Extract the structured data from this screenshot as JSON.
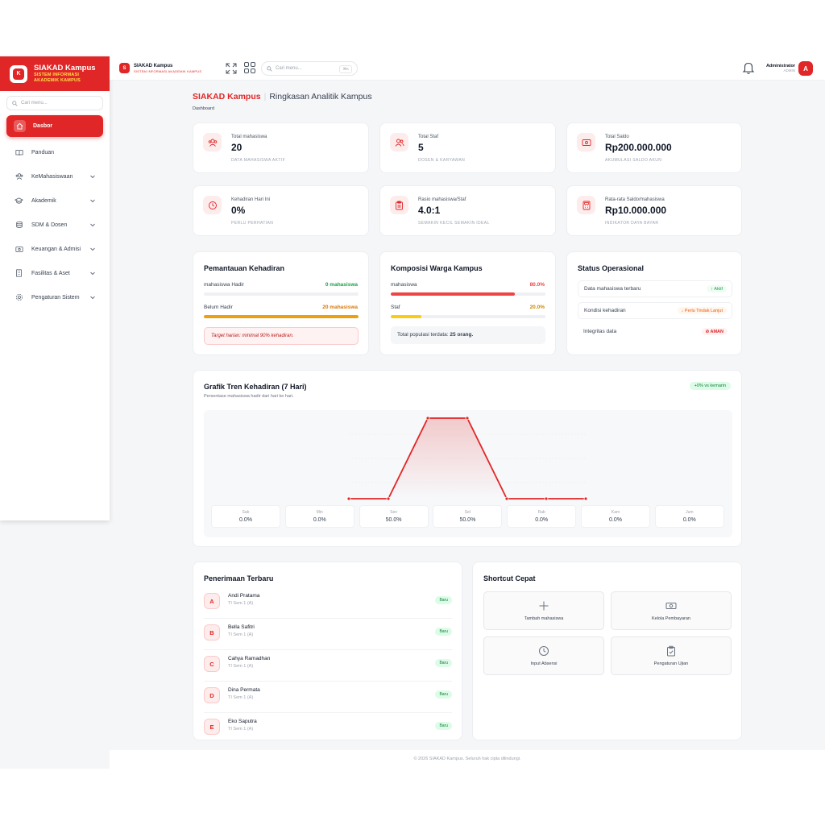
{
  "brand": {
    "name": "SIAKAD Kampus",
    "sub_line1": "SISTEM INFORMASI",
    "sub_line2": "AKADEMIK KAMPUS",
    "logo_letter": "K"
  },
  "sidebar": {
    "search_placeholder": "Cari menu...",
    "items": [
      {
        "label": "Dasbor",
        "icon": "home-icon",
        "active": true
      },
      {
        "label": "Panduan",
        "icon": "book-icon"
      },
      {
        "label": "KeMahasiswaan",
        "icon": "users-icon",
        "has_children": true
      },
      {
        "label": "Akademik",
        "icon": "graduation-cap-icon",
        "has_children": true
      },
      {
        "label": "SDM & Dosen",
        "icon": "database-icon",
        "has_children": true
      },
      {
        "label": "Keuangan & Admisi",
        "icon": "wallet-icon",
        "has_children": true
      },
      {
        "label": "Fasilitas & Aset",
        "icon": "building-icon",
        "has_children": true
      },
      {
        "label": "Pengaturan Sistem",
        "icon": "gear-icon",
        "has_children": true
      }
    ]
  },
  "topbar": {
    "logo_letter": "S",
    "title": "SIAKAD Kampus",
    "subtitle": "SISTEM INFORMASI AKADEMIK KAMPUS",
    "search_placeholder": "Cari menu...",
    "shortcut": "⌘K",
    "user_name": "Administrator",
    "user_role": "ADMIN",
    "avatar_letter": "A"
  },
  "page": {
    "brand": "SIAKAD Kampus",
    "title": "Ringkasan Analitik Kampus",
    "breadcrumb": "Dashboard"
  },
  "stats": [
    {
      "label": "Total mahasiswa",
      "value": "20",
      "sub": "DATA MAHASISWA AKTIF",
      "icon": "users-icon"
    },
    {
      "label": "Total Staf",
      "value": "5",
      "sub": "DOSEN & KARYAWAN",
      "icon": "user-group-icon"
    },
    {
      "label": "Total Saldo",
      "value": "Rp200.000.000",
      "sub": "AKUMULASI SALDO AKUN",
      "icon": "banknote-icon"
    },
    {
      "label": "Kehadiran Hari Ini",
      "value": "0%",
      "sub": "PERLU PERHATIAN",
      "icon": "clock-icon"
    },
    {
      "label": "Rasio mahasiswa/Staf",
      "value": "4.0:1",
      "sub": "SEMAKIN KECIL SEMAKIN IDEAL",
      "icon": "clipboard-icon"
    },
    {
      "label": "Rata-rata Saldo/mahasiswa",
      "value": "Rp10.000.000",
      "sub": "INDIKATOR DAYA BAYAR",
      "icon": "calculator-icon"
    }
  ],
  "attendance": {
    "title": "Pemantauan Kehadiran",
    "rows": [
      {
        "label": "mahasiswa Hadir",
        "value": "0 mahasiswa",
        "fraction": 0,
        "color": "#16a34a"
      },
      {
        "label": "Belum Hadir",
        "value": "20 mahasiswa",
        "fraction": 1,
        "color": "#eaa00f"
      }
    ],
    "note": "Target harian: minimal 90% kehadiran."
  },
  "composition": {
    "title": "Komposisi Warga Kampus",
    "rows": [
      {
        "label": "mahasiswa",
        "value": "80.0%",
        "fraction": 0.8,
        "color": "#ef4444"
      },
      {
        "label": "Staf",
        "value": "20.0%",
        "fraction": 0.2,
        "color": "#facc15"
      }
    ],
    "total_text": "Total populasi terdata: ",
    "total_value": "25 orang."
  },
  "status": {
    "title": "Status Operasional",
    "rows": [
      {
        "label": "Data mahasiswa terbaru",
        "badge": "↑ Aktif",
        "kind": "ok"
      },
      {
        "label": "Kondisi kehadiran",
        "badge": "↓ Perlu Tindak Lanjut",
        "kind": "warn"
      },
      {
        "label": "Integritas data",
        "badge": "⊘ AMAN",
        "kind": "danger"
      }
    ]
  },
  "trend": {
    "title": "Grafik Tren Kehadiran (7 Hari)",
    "subtitle": "Persentase mahasiswa hadir dari hari ke hari.",
    "badge": "+0% vs kemarin"
  },
  "chart_data": {
    "type": "area",
    "x": [
      "Sab",
      "Min",
      "Sen",
      "Sel",
      "Rab",
      "Kam",
      "Jum"
    ],
    "values": [
      0,
      0,
      50,
      50,
      0,
      0,
      0
    ],
    "value_labels": [
      "0.0%",
      "0.0%",
      "50.0%",
      "50.0%",
      "0.0%",
      "0.0%",
      "0.0%"
    ],
    "ylim": [
      0,
      100
    ],
    "color": "#e02626"
  },
  "recent": {
    "title": "Penerimaan Terbaru",
    "items": [
      {
        "initial": "A",
        "name": "Andi Pratama",
        "class": "TI Sem 1 (A)",
        "badge": "Baru"
      },
      {
        "initial": "B",
        "name": "Bella Safitri",
        "class": "TI Sem 1 (A)",
        "badge": "Baru"
      },
      {
        "initial": "C",
        "name": "Cahya Ramadhan",
        "class": "TI Sem 1 (A)",
        "badge": "Baru"
      },
      {
        "initial": "D",
        "name": "Dina Permata",
        "class": "TI Sem 1 (A)",
        "badge": "Baru"
      },
      {
        "initial": "E",
        "name": "Eko Saputra",
        "class": "TI Sem 1 (A)",
        "badge": "Baru"
      }
    ]
  },
  "shortcuts": {
    "title": "Shortcut Cepat",
    "items": [
      {
        "label": "Tambah mahasiswa",
        "icon": "plus-icon"
      },
      {
        "label": "Kelola Pembayaran",
        "icon": "banknote-icon"
      },
      {
        "label": "Input Absensi",
        "icon": "clock-icon"
      },
      {
        "label": "Pengaturan Ujian",
        "icon": "clipboard-check-icon"
      }
    ]
  },
  "footer": "© 2026 SIAKAD Kampus. Seluruh hak cipta dilindungi."
}
